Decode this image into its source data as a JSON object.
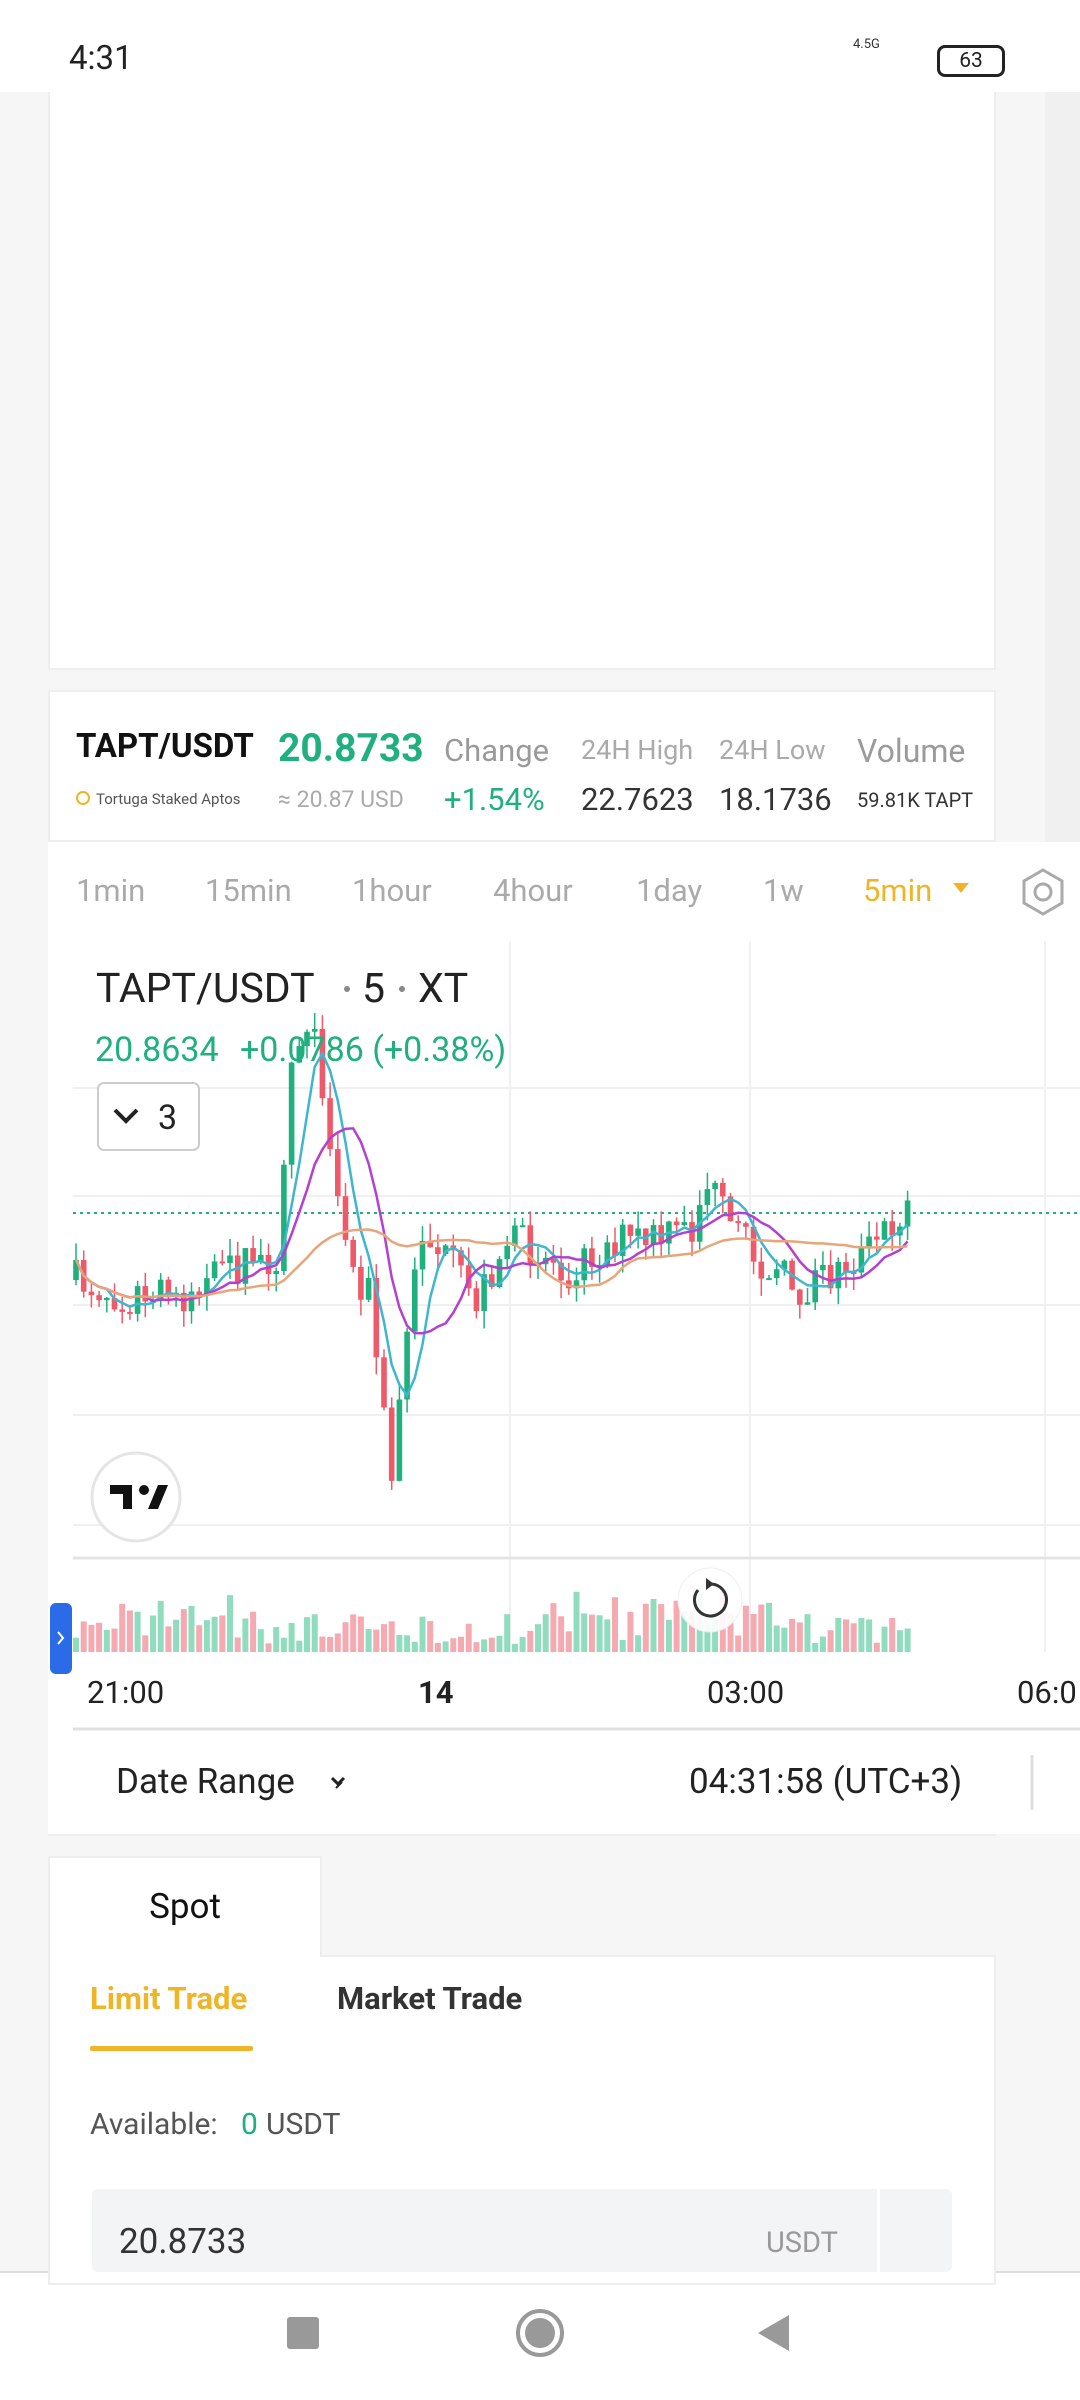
{
  "status_bar": {
    "time": "4:31",
    "network": "4.5G",
    "battery": "63"
  },
  "market": {
    "pair": "TAPT/USDT",
    "name": "Tortuga Staked Aptos",
    "price": "20.8733",
    "price_usd": "≈ 20.87 USD",
    "stats": [
      {
        "label": "Change",
        "value": "+1.54%"
      },
      {
        "label": "24H High",
        "value": "22.7623"
      },
      {
        "label": "24H Low",
        "value": "18.1736"
      },
      {
        "label": "Volume",
        "value": "59.81K TAPT"
      }
    ]
  },
  "intervals": [
    "1min",
    "15min",
    "1hour",
    "4hour",
    "1day",
    "1w"
  ],
  "selected_interval": "5min",
  "chart": {
    "symbol": "TAPT/USDT",
    "interval": "5",
    "exchange": "XT",
    "last": "20.8634",
    "change": "+0.0786 (+0.38%)",
    "indicators": "3",
    "time_labels": [
      "21:00",
      "14",
      "03:00",
      "06:0"
    ],
    "date_range": "Date Range",
    "clock": "04:31:58 (UTC+3)"
  },
  "trade": {
    "tab": "Spot",
    "modes": [
      "Limit Trade",
      "Market Trade"
    ],
    "available_label": "Available:",
    "available": "0",
    "available_unit": "USDT",
    "price_input": "20.8733",
    "price_unit": "USDT"
  }
}
